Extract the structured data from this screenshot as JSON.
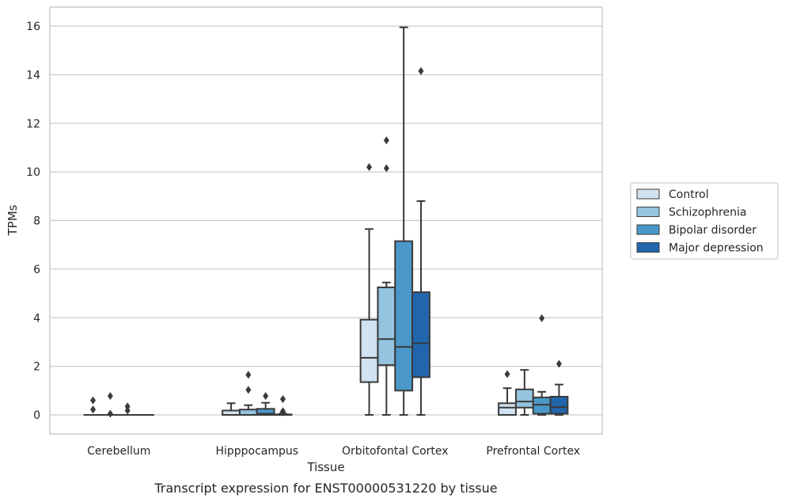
{
  "chart_data": {
    "type": "box",
    "caption": "Transcript expression for ENST00000531220 by tissue",
    "xlabel": "Tissue",
    "ylabel": "TPMs",
    "ylim": [
      -0.8,
      16.8
    ],
    "yticks": [
      0,
      2,
      4,
      6,
      8,
      10,
      12,
      14,
      16
    ],
    "grid": "horizontal",
    "legend_position": "right",
    "categories": [
      "Cerebellum",
      "Hipppocampus",
      "Orbitofontal Cortex",
      "Prefrontal Cortex"
    ],
    "series": [
      {
        "name": "Control",
        "color": "#d1e2f2",
        "boxes": [
          {
            "min": 0,
            "q1": 0,
            "median": 0,
            "q3": 0,
            "max": 0,
            "outliers": [
              0.6,
              0.22
            ]
          },
          {
            "min": 0,
            "q1": 0,
            "median": 0,
            "q3": 0.18,
            "max": 0.48,
            "outliers": []
          },
          {
            "min": 0,
            "q1": 1.35,
            "median": 2.35,
            "q3": 3.92,
            "max": 7.65,
            "outliers": [
              10.2
            ]
          },
          {
            "min": 0,
            "q1": 0,
            "median": 0.3,
            "q3": 0.48,
            "max": 1.1,
            "outliers": [
              1.68
            ]
          }
        ]
      },
      {
        "name": "Schizophrenia",
        "color": "#94c4df",
        "boxes": [
          {
            "min": 0,
            "q1": 0,
            "median": 0,
            "q3": 0,
            "max": 0,
            "outliers": [
              0.78,
              0.05
            ]
          },
          {
            "min": 0,
            "q1": 0,
            "median": 0,
            "q3": 0.22,
            "max": 0.4,
            "outliers": [
              1.65,
              1.03
            ]
          },
          {
            "min": 0,
            "q1": 2.05,
            "median": 3.12,
            "q3": 5.25,
            "max": 5.45,
            "outliers": [
              11.3,
              10.15
            ]
          },
          {
            "min": 0,
            "q1": 0.3,
            "median": 0.55,
            "q3": 1.05,
            "max": 1.85,
            "outliers": []
          }
        ]
      },
      {
        "name": "Bipolar disorder",
        "color": "#4a98c9",
        "boxes": [
          {
            "min": 0,
            "q1": 0,
            "median": 0,
            "q3": 0,
            "max": 0,
            "outliers": [
              0.35,
              0.18
            ]
          },
          {
            "min": 0,
            "q1": 0,
            "median": 0.05,
            "q3": 0.25,
            "max": 0.5,
            "outliers": [
              0.78
            ]
          },
          {
            "min": 0,
            "q1": 1.0,
            "median": 2.8,
            "q3": 7.15,
            "max": 15.95,
            "outliers": []
          },
          {
            "min": 0,
            "q1": 0.05,
            "median": 0.42,
            "q3": 0.72,
            "max": 0.95,
            "outliers": [
              3.98
            ]
          }
        ]
      },
      {
        "name": "Major depression",
        "color": "#2166ac",
        "boxes": [
          {
            "min": 0,
            "q1": 0,
            "median": 0,
            "q3": 0,
            "max": 0,
            "outliers": []
          },
          {
            "min": 0,
            "q1": 0,
            "median": 0,
            "q3": 0.02,
            "max": 0.05,
            "outliers": [
              0.65,
              0.15,
              0.1
            ]
          },
          {
            "min": 0,
            "q1": 1.55,
            "median": 2.95,
            "q3": 5.05,
            "max": 8.8,
            "outliers": [
              14.15
            ]
          },
          {
            "min": 0,
            "q1": 0.05,
            "median": 0.32,
            "q3": 0.75,
            "max": 1.25,
            "outliers": [
              2.1
            ]
          }
        ]
      }
    ]
  }
}
